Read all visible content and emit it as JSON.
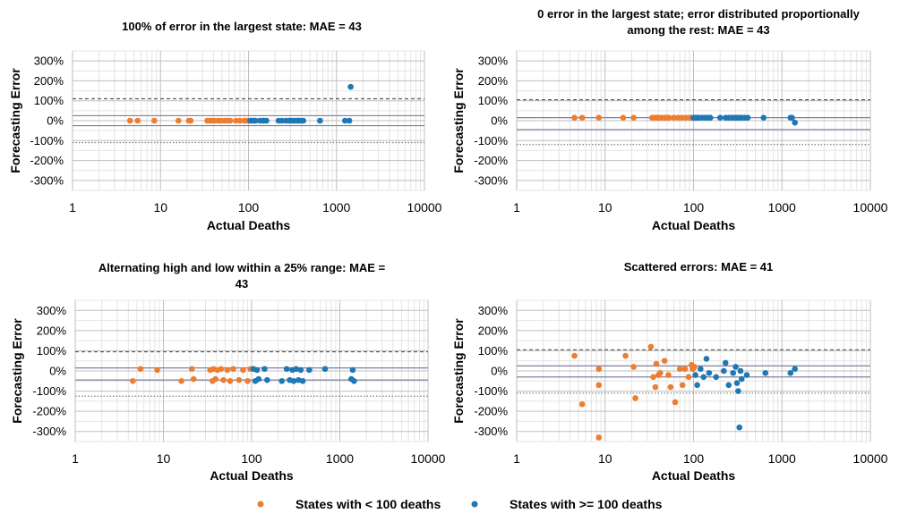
{
  "colors": {
    "low": "#ED7D31",
    "high": "#1F77B4",
    "grid_major": "#BFBFBF",
    "grid_minor": "#E4E4E4",
    "ref_solid": "#7F7F9F",
    "ref_dashed": "#595959",
    "ref_dotted": "#808080"
  },
  "legend": {
    "items": [
      {
        "label": "States with < 100 deaths",
        "color": "#ED7D31"
      },
      {
        "label": "States with >= 100 deaths",
        "color": "#1F77B4"
      }
    ]
  },
  "chart_data": [
    {
      "type": "scatter",
      "title_lines": [
        "100% of error in the largest state: MAE = 43"
      ],
      "xlabel": "Actual Deaths",
      "ylabel": "Forecasting Error",
      "xscale": "log",
      "xlim": [
        1,
        10000
      ],
      "ylim": [
        -350,
        350
      ],
      "x_ticks": [
        "1",
        "10",
        "100",
        "1000",
        "10000"
      ],
      "y_ticks": [
        "300%",
        "200%",
        "100%",
        "0%",
        "-100%",
        "-200%",
        "-300%"
      ],
      "ref_lines": {
        "upper_dashed": 110,
        "solid_1": 25,
        "solid_2": -25,
        "lower_dotted": -110
      },
      "series": [
        {
          "name": "States with < 100 deaths",
          "x": [
            4.5,
            5.5,
            8.5,
            16,
            21,
            22,
            34,
            36,
            37,
            39,
            41,
            45,
            48,
            53,
            57,
            62,
            72,
            80,
            90,
            97
          ],
          "y": [
            0,
            0,
            0,
            0,
            0,
            0,
            0,
            0,
            0,
            0,
            0,
            0,
            0,
            0,
            0,
            0,
            0,
            0,
            0,
            0
          ]
        },
        {
          "name": "States with >= 100 deaths",
          "x": [
            105,
            110,
            115,
            120,
            135,
            145,
            150,
            160,
            220,
            240,
            265,
            285,
            300,
            310,
            330,
            350,
            365,
            380,
            400,
            420,
            650,
            1250,
            1400,
            1450
          ],
          "y": [
            0,
            0,
            0,
            0,
            0,
            0,
            0,
            0,
            0,
            0,
            0,
            0,
            0,
            0,
            0,
            0,
            0,
            0,
            0,
            0,
            0,
            0,
            0,
            170
          ]
        }
      ]
    },
    {
      "type": "scatter",
      "title_lines": [
        "0 error in the largest state; error distributed proportionally",
        "among the rest: MAE = 43"
      ],
      "xlabel": "Actual Deaths",
      "ylabel": "Forecasting Error",
      "xscale": "log",
      "xlim": [
        1,
        10000
      ],
      "ylim": [
        -350,
        350
      ],
      "x_ticks": [
        "1",
        "10",
        "100",
        "1000",
        "10000"
      ],
      "y_ticks": [
        "300%",
        "200%",
        "100%",
        "0%",
        "-100%",
        "-200%",
        "-300%"
      ],
      "ref_lines": {
        "upper_dashed": 105,
        "solid_1": 15,
        "solid_2": -45,
        "lower_dotted": -120
      },
      "series": [
        {
          "name": "States with < 100 deaths",
          "x": [
            4.5,
            5.5,
            8.5,
            16,
            21,
            34,
            36,
            38,
            40,
            43,
            47,
            50,
            53,
            60,
            67,
            74,
            82,
            90,
            95
          ],
          "y": [
            15,
            15,
            15,
            15,
            15,
            15,
            15,
            15,
            15,
            15,
            15,
            15,
            15,
            15,
            15,
            15,
            15,
            15,
            15
          ]
        },
        {
          "name": "States with >= 100 deaths",
          "x": [
            100,
            105,
            110,
            115,
            125,
            135,
            145,
            155,
            200,
            230,
            250,
            270,
            290,
            310,
            330,
            350,
            380,
            410,
            620,
            1250,
            1300,
            1400
          ],
          "y": [
            15,
            15,
            15,
            15,
            15,
            15,
            15,
            15,
            15,
            15,
            15,
            15,
            15,
            15,
            15,
            15,
            15,
            15,
            15,
            15,
            15,
            -10
          ]
        }
      ]
    },
    {
      "type": "scatter",
      "title_lines": [
        "Alternating high and low within a 25% range: MAE =",
        "43"
      ],
      "xlabel": "Actual Deaths",
      "ylabel": "Forecasting Error",
      "xscale": "log",
      "xlim": [
        1,
        10000
      ],
      "ylim": [
        -350,
        350
      ],
      "x_ticks": [
        "1",
        "10",
        "100",
        "1000",
        "10000"
      ],
      "y_ticks": [
        "300%",
        "200%",
        "100%",
        "0%",
        "-100%",
        "-200%",
        "-300%"
      ],
      "ref_lines": {
        "upper_dashed": 95,
        "solid_1": 15,
        "solid_2": -45,
        "lower_dotted": -125
      },
      "series": [
        {
          "name": "States with < 100 deaths",
          "x": [
            4.5,
            5.5,
            8.5,
            16,
            21,
            22,
            34,
            36,
            37,
            39,
            41,
            45,
            48,
            53,
            57,
            62,
            72,
            80,
            90,
            97
          ],
          "y": [
            -50,
            10,
            5,
            -50,
            10,
            -40,
            5,
            -50,
            10,
            -40,
            5,
            10,
            -45,
            5,
            -50,
            10,
            -45,
            5,
            -50,
            10
          ]
        },
        {
          "name": "States with >= 100 deaths",
          "x": [
            105,
            110,
            115,
            120,
            140,
            150,
            220,
            250,
            270,
            290,
            300,
            320,
            340,
            360,
            380,
            450,
            680,
            1350,
            1400,
            1450
          ],
          "y": [
            10,
            -50,
            5,
            -40,
            10,
            -45,
            -50,
            10,
            -45,
            5,
            -50,
            10,
            -45,
            5,
            -50,
            5,
            10,
            -40,
            5,
            -50
          ]
        }
      ]
    },
    {
      "type": "scatter",
      "title_lines": [
        "Scattered errors: MAE = 41"
      ],
      "xlabel": "Actual Deaths",
      "ylabel": "Forecasting Error",
      "xscale": "log",
      "xlim": [
        1,
        10000
      ],
      "ylim": [
        -350,
        350
      ],
      "x_ticks": [
        "1",
        "10",
        "100",
        "1000",
        "10000"
      ],
      "y_ticks": [
        "300%",
        "200%",
        "100%",
        "0%",
        "-100%",
        "-200%",
        "-300%"
      ],
      "ref_lines": {
        "upper_dashed": 105,
        "solid_1": 25,
        "solid_2": -30,
        "lower_dotted": -110
      },
      "series": [
        {
          "name": "States with < 100 deaths",
          "x": [
            4.5,
            5.5,
            8.5,
            8.5,
            8.5,
            17,
            21,
            22,
            33,
            35,
            37,
            38,
            40,
            42,
            47,
            52,
            55,
            62,
            70,
            75,
            80,
            88,
            95,
            98,
            102
          ],
          "y": [
            75,
            -165,
            10,
            -70,
            -330,
            75,
            20,
            -135,
            120,
            -30,
            -80,
            35,
            -20,
            -10,
            50,
            -20,
            -80,
            -155,
            10,
            -70,
            10,
            -30,
            30,
            10,
            20
          ]
        },
        {
          "name": "States with >= 100 deaths",
          "x": [
            105,
            110,
            120,
            130,
            140,
            150,
            180,
            220,
            230,
            250,
            280,
            300,
            310,
            320,
            330,
            340,
            350,
            400,
            650,
            1250,
            1400
          ],
          "y": [
            -20,
            -70,
            10,
            -30,
            60,
            -10,
            -30,
            0,
            40,
            -70,
            -10,
            20,
            -60,
            -100,
            -280,
            0,
            -40,
            -20,
            -10,
            -10,
            10
          ]
        }
      ]
    }
  ]
}
